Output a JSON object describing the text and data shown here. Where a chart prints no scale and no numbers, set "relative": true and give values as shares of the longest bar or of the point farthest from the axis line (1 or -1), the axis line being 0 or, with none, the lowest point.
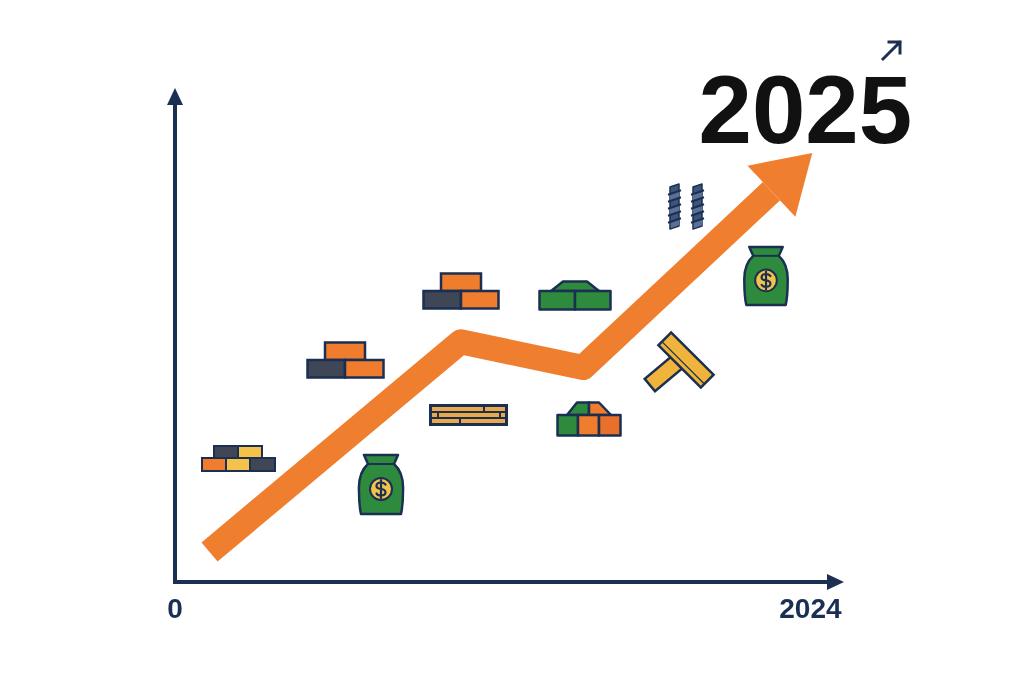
{
  "chart_data": {
    "type": "line",
    "relative": true,
    "x": [
      110,
      910,
      1300,
      2030
    ],
    "xlim": [
      0,
      2080
    ],
    "xticks": [
      0,
      2024
    ],
    "series": [
      {
        "color": "#ef7f2e",
        "values": [
          0.07,
          0.56,
          0.5,
          1
        ]
      }
    ],
    "annotations": [
      {
        "text": "2025",
        "x": 2030,
        "y": 1
      }
    ]
  }
}
